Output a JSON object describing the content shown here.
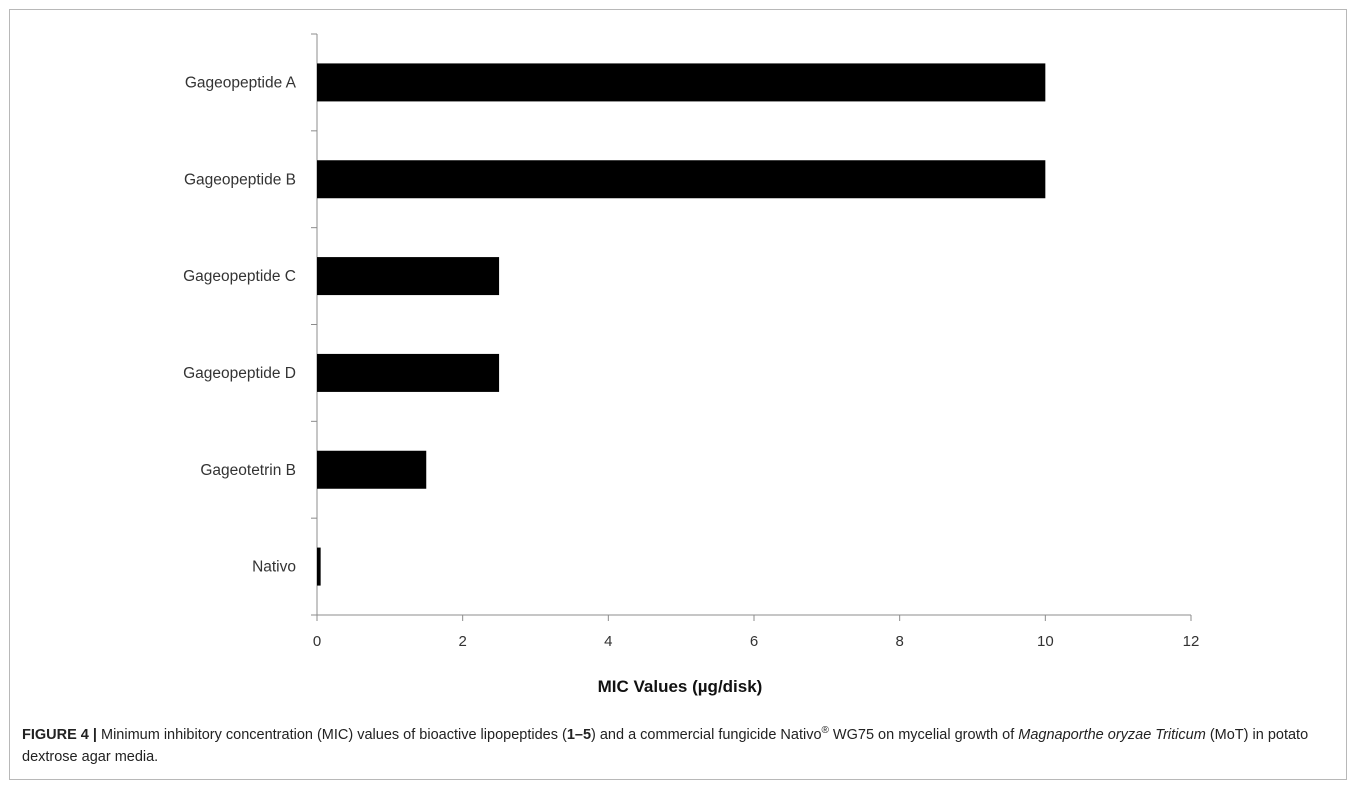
{
  "chart_data": {
    "type": "bar",
    "orientation": "horizontal",
    "categories": [
      "Gageopeptide A",
      "Gageopeptide B",
      "Gageopeptide C",
      "Gageopeptide D",
      "Gageotetrin B",
      "Nativo"
    ],
    "values": [
      10,
      10,
      2.5,
      2.5,
      1.5,
      0.05
    ],
    "xlabel": "MIC Values (µg/disk)",
    "ylabel": "",
    "xlim": [
      0,
      12
    ],
    "xticks": [
      "0",
      "2",
      "4",
      "6",
      "8",
      "10",
      "12"
    ],
    "grid": false,
    "bar_color": "#000000"
  },
  "caption": {
    "label": "FIGURE 4 |",
    "t1": " Minimum inhibitory concentration (MIC) values of bioactive lipopeptides (",
    "bold_range": "1–5",
    "t2": ") and a commercial fungicide Nativo",
    "sup": "®",
    "t3": " WG75 on mycelial growth of ",
    "italic": "Magnaporthe oryzae Triticum",
    "t4": " (MoT) in potato dextrose agar media."
  }
}
